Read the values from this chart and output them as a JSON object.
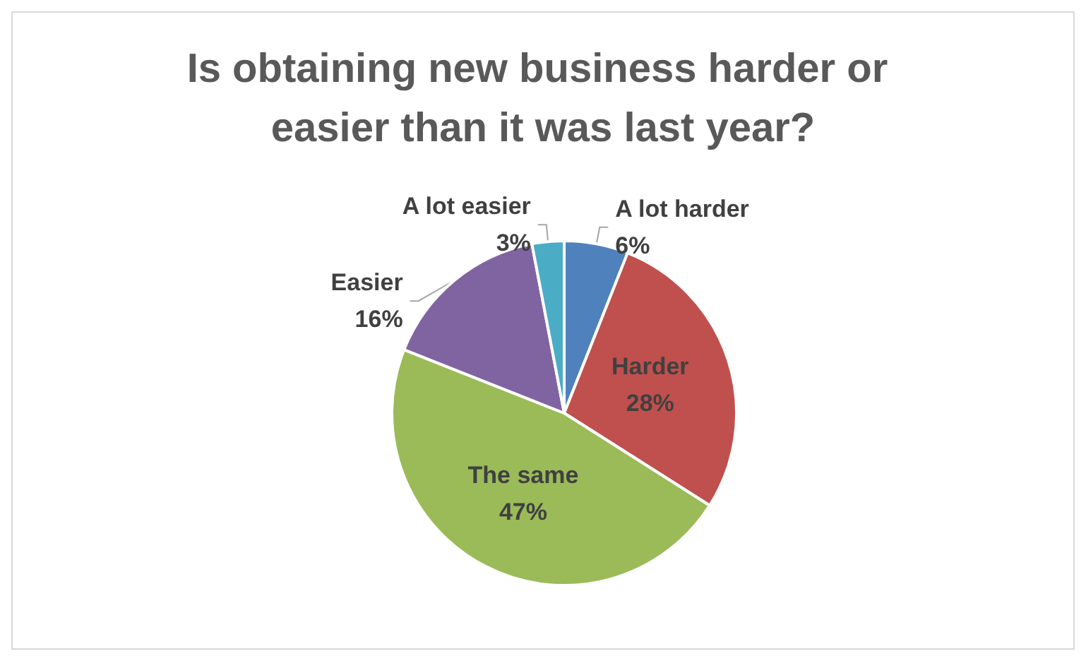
{
  "chart_data": {
    "type": "pie",
    "title": "Is obtaining new business harder or easier than it was last year?",
    "categories": [
      "A lot harder",
      "Harder",
      "The same",
      "Easier",
      "A lot easier"
    ],
    "values": [
      6,
      28,
      47,
      16,
      3
    ],
    "colors": [
      "#4f81bd",
      "#c0504d",
      "#9bbb59",
      "#8064a2",
      "#4bacc6"
    ],
    "value_labels": [
      "6%",
      "28%",
      "47%",
      "16%",
      "3%"
    ],
    "legend": false
  }
}
